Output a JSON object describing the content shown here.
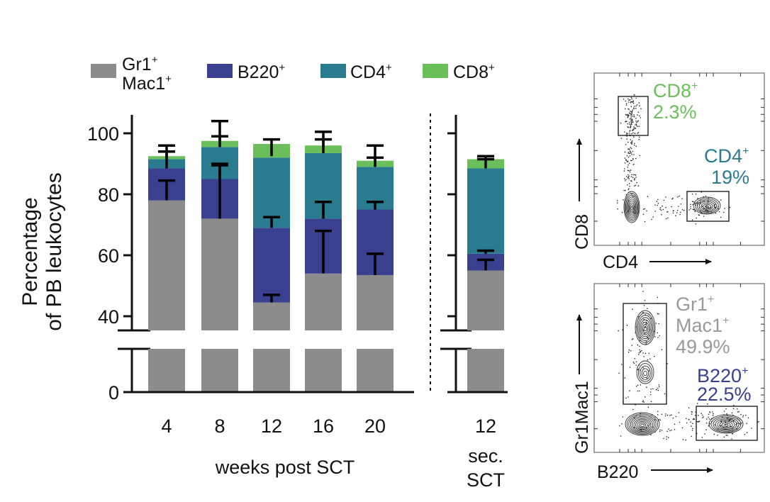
{
  "chart_data": [
    {
      "type": "bar",
      "stacked": true,
      "broken_y_axis": true,
      "ylabel_line1": "Percentage",
      "ylabel_line2": "of PB leukocytes",
      "xlabel": "weeks post SCT",
      "yticks": [
        0,
        40,
        60,
        80,
        100
      ],
      "ylim_upper_segment": [
        35,
        105
      ],
      "legend_placement": "top",
      "legend": [
        {
          "key": "gr1mac1",
          "line1": "Gr1",
          "sup1": "+",
          "line2": "Mac1",
          "sup2": "+",
          "color": "#8c8c8c"
        },
        {
          "key": "b220",
          "line1": "B220",
          "sup1": "+",
          "color": "#39408f"
        },
        {
          "key": "cd4",
          "line1": "CD4",
          "sup1": "+",
          "color": "#2a7b90"
        },
        {
          "key": "cd8",
          "line1": "CD8",
          "sup1": "+",
          "color": "#6abf5a"
        }
      ],
      "groups": [
        {
          "name": "primary",
          "categories": [
            "4",
            "8",
            "12",
            "16",
            "20"
          ],
          "series": [
            {
              "name": "Gr1+Mac1+",
              "values": [
                78,
                72,
                44.5,
                54,
                53.5
              ]
            },
            {
              "name": "B220+",
              "values": [
                10.5,
                13,
                24.5,
                18,
                21.5
              ]
            },
            {
              "name": "CD4+",
              "values": [
                3,
                10.5,
                23,
                21.5,
                14
              ]
            },
            {
              "name": "CD8+",
              "values": [
                1,
                2,
                4.5,
                2.5,
                2
              ]
            }
          ],
          "error_bars": [
            [
              78,
              84.5
            ],
            [
              88.5,
              94
            ],
            [
              91.5,
              96
            ],
            [
              72,
              90
            ],
            [
              85,
              89.5
            ],
            [
              95.5,
              104
            ],
            [
              97.5,
              99
            ],
            [
              44.5,
              47
            ],
            [
              69,
              72.5
            ],
            [
              92.5,
              98
            ],
            [
              54,
              68
            ],
            [
              72,
              77.5
            ],
            [
              93.5,
              100.5
            ],
            [
              96,
              98
            ],
            [
              53.5,
              60.5
            ],
            [
              75,
              77.5
            ],
            [
              89,
              96
            ],
            [
              91,
              92
            ]
          ]
        },
        {
          "name": "secondary",
          "categories": [
            "12"
          ],
          "category_sub_line1": "sec.",
          "category_sub_line2": "SCT",
          "series": [
            {
              "name": "Gr1+Mac1+",
              "values": [
                55
              ]
            },
            {
              "name": "B220+",
              "values": [
                5.5
              ]
            },
            {
              "name": "CD4+",
              "values": [
                28
              ]
            },
            {
              "name": "CD8+",
              "values": [
                3
              ]
            }
          ],
          "error_bars": [
            [
              55,
              58.5
            ],
            [
              60.5,
              61.5
            ],
            [
              88.5,
              91.5
            ],
            [
              91.5,
              92.5
            ]
          ]
        }
      ]
    },
    {
      "type": "scatter",
      "title": "flow-cytometry-cd4-cd8",
      "xlabel": "CD4",
      "ylabel": "CD8",
      "gates": [
        {
          "label": "CD8",
          "sup": "+",
          "value": "2.3%",
          "color": "#6abf5a"
        },
        {
          "label": "CD4",
          "sup": "+",
          "value": "19%",
          "color": "#2a7b90"
        }
      ]
    },
    {
      "type": "scatter",
      "title": "flow-cytometry-gr1mac1-b220",
      "xlabel": "B220",
      "ylabel": "Gr1Mac1",
      "gates": [
        {
          "label": "Gr1",
          "sup": "+",
          "label2": "Mac1",
          "sup2": "+",
          "value": "49.9%",
          "color": "#999999"
        },
        {
          "label": "B220",
          "sup": "+",
          "value": "22.5%",
          "color": "#39408f"
        }
      ]
    }
  ]
}
